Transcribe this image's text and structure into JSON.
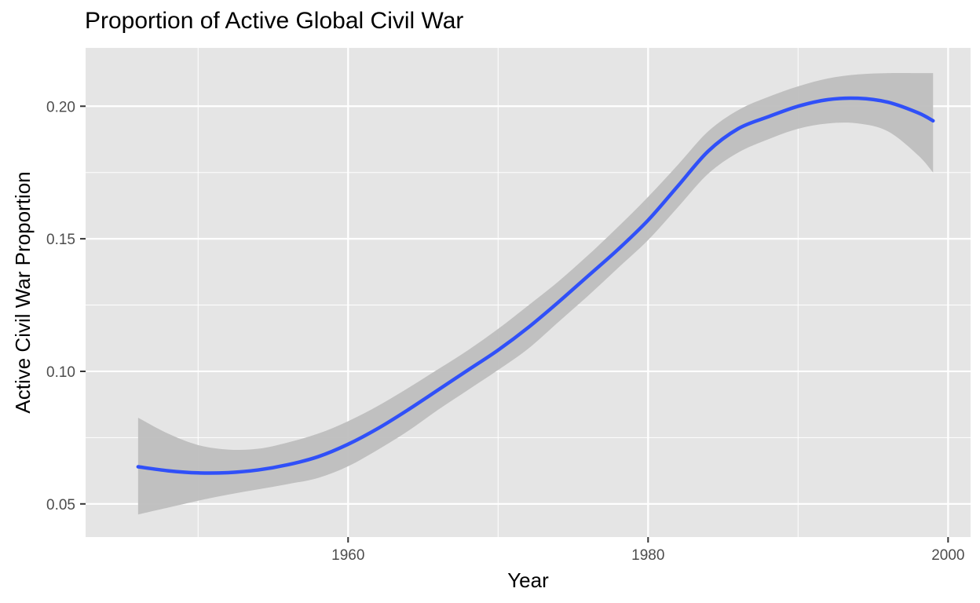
{
  "chart_data": {
    "type": "line",
    "title": "Proportion of Active Global Civil War",
    "xlabel": "Year",
    "ylabel": "Active Civil War Proportion",
    "xlim": [
      1942.5,
      2001.5
    ],
    "ylim": [
      0.0375,
      0.222
    ],
    "x_ticks": [
      1960,
      1980,
      2000
    ],
    "x_tick_labels": [
      "1960",
      "1980",
      "2000"
    ],
    "y_ticks": [
      0.05,
      0.1,
      0.15,
      0.2
    ],
    "y_tick_labels": [
      "0.05",
      "0.10",
      "0.15",
      "0.20"
    ],
    "grid": true,
    "colors": {
      "panel": "#e5e5e5",
      "grid": "#ffffff",
      "line": "#3050f8",
      "band": "#bebebe"
    },
    "series": [
      {
        "x": [
          1946,
          1948,
          1950,
          1952,
          1954,
          1956,
          1958,
          1960,
          1962,
          1964,
          1966,
          1968,
          1970,
          1972,
          1974,
          1976,
          1978,
          1980,
          1982,
          1984,
          1986,
          1988,
          1990,
          1992,
          1994,
          1996,
          1998,
          1999
        ],
        "y": [
          0.064,
          0.0625,
          0.0617,
          0.0618,
          0.0628,
          0.0648,
          0.0678,
          0.0725,
          0.0785,
          0.0855,
          0.093,
          0.1005,
          0.108,
          0.1165,
          0.126,
          0.136,
          0.146,
          0.157,
          0.17,
          0.183,
          0.1915,
          0.196,
          0.2,
          0.2025,
          0.203,
          0.2015,
          0.1975,
          0.1945
        ],
        "lower": [
          0.046,
          0.0486,
          0.0512,
          0.0535,
          0.0555,
          0.0575,
          0.0598,
          0.0642,
          0.0705,
          0.0775,
          0.0855,
          0.093,
          0.1005,
          0.1085,
          0.1185,
          0.1285,
          0.139,
          0.1495,
          0.162,
          0.1745,
          0.1825,
          0.1875,
          0.1915,
          0.1935,
          0.1935,
          0.1905,
          0.1815,
          0.175
        ],
        "upper": [
          0.0825,
          0.0765,
          0.0722,
          0.0705,
          0.0708,
          0.0732,
          0.0765,
          0.0812,
          0.087,
          0.0937,
          0.1008,
          0.108,
          0.116,
          0.1248,
          0.1338,
          0.1438,
          0.1545,
          0.1658,
          0.178,
          0.1905,
          0.1985,
          0.2035,
          0.2075,
          0.2105,
          0.212,
          0.2125,
          0.2125,
          0.2125
        ]
      }
    ]
  }
}
